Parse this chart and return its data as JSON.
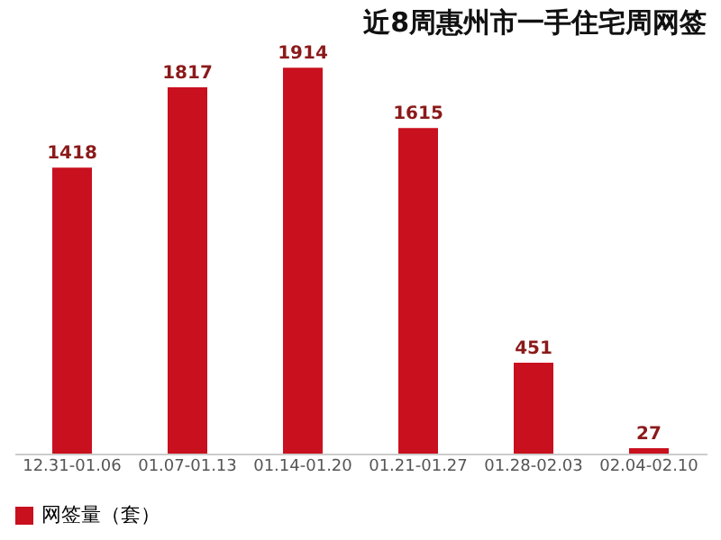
{
  "chart_data": {
    "type": "bar",
    "title": "近8周惠州市一手住宅周网签",
    "categories": [
      "12.31-01.06",
      "01.07-01.13",
      "01.14-01.20",
      "01.21-01.27",
      "01.28-02.03",
      "02.04-02.10"
    ],
    "series": [
      {
        "name": "网签量（套）",
        "color": "#c8101e",
        "values": [
          1418,
          1817,
          1914,
          1615,
          451,
          27
        ]
      }
    ],
    "data_labels": true,
    "legend": "bottom",
    "grid": false
  }
}
